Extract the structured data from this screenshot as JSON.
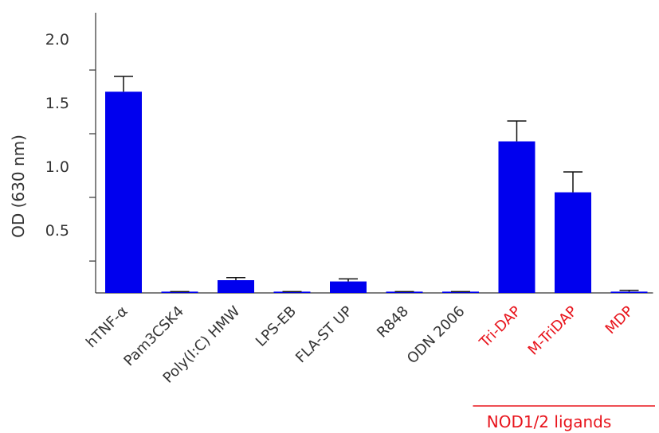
{
  "chart_data": {
    "type": "bar",
    "title": "",
    "xlabel": "",
    "ylabel": "OD (630 nm)",
    "ylim": [
      0,
      2.2
    ],
    "yticks": [
      "0.5",
      "1.0",
      "1.5",
      "2.0"
    ],
    "ytick_values": [
      0.5,
      1.0,
      1.5,
      2.0
    ],
    "categories": [
      "hTNF-α",
      "Pam3CSK4",
      "Poly(I:C) HMW",
      "LPS-EB",
      "FLA-ST UP",
      "R848",
      "ODN 2006",
      "Tri-DAP",
      "M-TriDAP",
      "MDP"
    ],
    "values": [
      1.58,
      0.01,
      0.1,
      0.01,
      0.09,
      0.01,
      0.01,
      1.19,
      0.79,
      0.01
    ],
    "errors": [
      0.12,
      0.0,
      0.02,
      0.0,
      0.02,
      0.0,
      0.0,
      0.16,
      0.16,
      0.01
    ],
    "category_colors": [
      "#333333",
      "#333333",
      "#333333",
      "#333333",
      "#333333",
      "#333333",
      "#333333",
      "#e8141c",
      "#e8141c",
      "#e8141c"
    ],
    "bar_color": "#0000ee",
    "highlight_color": "#e8141c",
    "group_label": "NOD1/2 ligands",
    "group_categories": [
      "Tri-DAP",
      "M-TriDAP",
      "MDP"
    ],
    "grid": false,
    "legend": "none"
  }
}
